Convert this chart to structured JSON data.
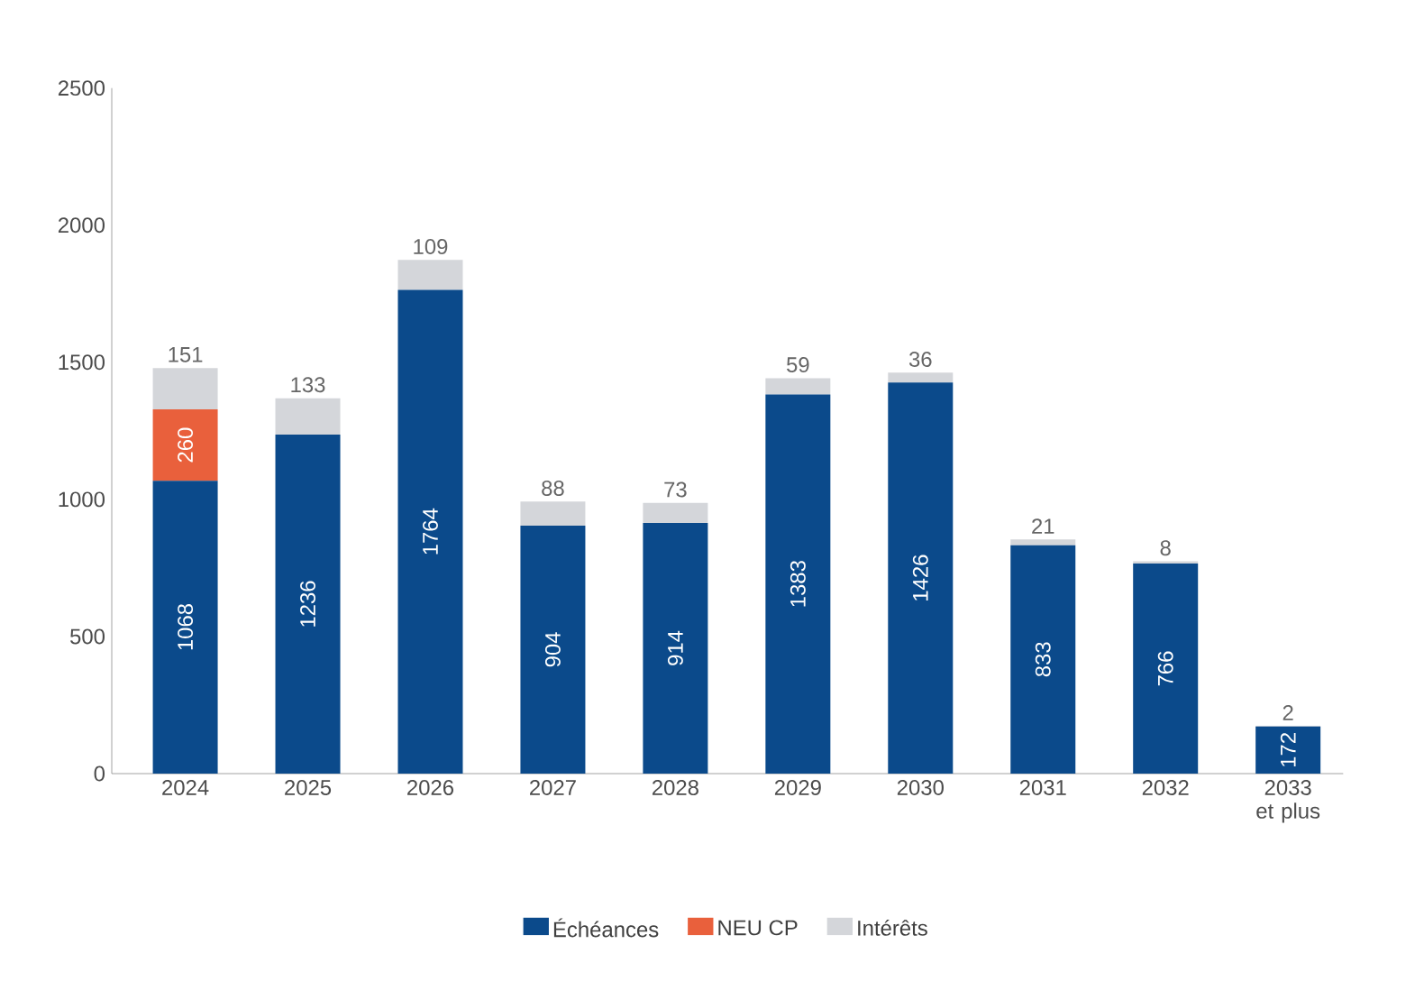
{
  "chart_data": {
    "type": "bar",
    "stacked": true,
    "data_labels": true,
    "legend": "bottom",
    "grid": false,
    "categories": [
      "2024",
      "2025",
      "2026",
      "2027",
      "2028",
      "2029",
      "2030",
      "2031",
      "2032",
      "2033 et plus"
    ],
    "ylim": [
      0,
      2500
    ],
    "yticks": [
      0,
      500,
      1000,
      1500,
      2000,
      2500
    ],
    "series": [
      {
        "name": "Échéances",
        "color": "#0b4a8b",
        "values": [
          1068,
          1236,
          1764,
          904,
          914,
          1383,
          1426,
          833,
          766,
          172
        ]
      },
      {
        "name": "NEU CP",
        "color": "#e9603c",
        "values": [
          260,
          null,
          null,
          null,
          null,
          null,
          null,
          null,
          null,
          null
        ]
      },
      {
        "name": "Intérêts",
        "color": "#d4d6da",
        "values": [
          151,
          133,
          109,
          88,
          73,
          59,
          36,
          21,
          8,
          2
        ]
      }
    ]
  }
}
